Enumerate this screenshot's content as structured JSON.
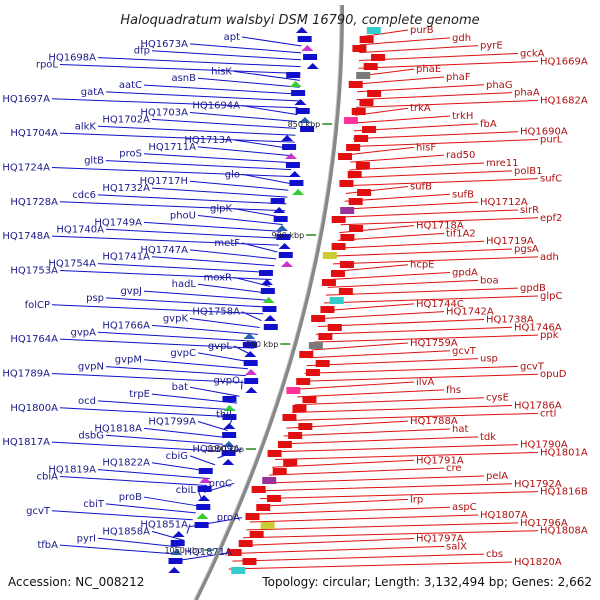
{
  "title": "Haloquadratum walsbyi DSM 16790, complete genome",
  "accession": "Accession: NC_008212",
  "topology": "Topology: circular; Length: 3,132,494 bp; Genes: 2,662",
  "colors": {
    "left_strand": "#1010cc",
    "right_strand": "#e01010",
    "backbone": "#888888",
    "tick": "#228822",
    "text": "#222222"
  },
  "kbp_ticks": [
    "850 kbp",
    "900 kbp",
    "950 kbp",
    "1000 kbp",
    "1050 kbp"
  ],
  "left_labels": [
    "apt",
    "HQ1673A",
    "dfp",
    "HQ1698A",
    "rpoL",
    "hisK",
    "asnB",
    "aatC",
    "gatA",
    "HQ1697A",
    "HQ1694A",
    "HQ1703A",
    "HQ1702A",
    "alkK",
    "HQ1704A",
    "HQ1713A",
    "HQ1711A",
    "proS",
    "gltB",
    "HQ1724A",
    "glo",
    "HQ1717H",
    "HQ1732A",
    "cdc6",
    "HQ1728A",
    "glpK",
    "phoU",
    "HQ1749A",
    "HQ1740A",
    "HQ1748A",
    "metF",
    "HQ1747A",
    "HQ1741A",
    "HQ1754A",
    "HQ1753A",
    "moxR",
    "hadL",
    "gvpJ",
    "psp",
    "folCP",
    "HQ1758A",
    "gvpK",
    "HQ1766A",
    "gvpA",
    "HQ1764A",
    "gvpL",
    "gvpC",
    "gvpM",
    "gvpN",
    "HQ1789A",
    "gvpO",
    "bat",
    "trpE",
    "ocd",
    "HQ1800A",
    "thiI",
    "HQ1799A",
    "HQ1818A",
    "dsbG",
    "HQ1817A",
    "HQ1809A",
    "cbiG",
    "HQ1822A",
    "HQ1819A",
    "cbiA",
    "proC",
    "cbiL",
    "proB",
    "cbiT",
    "gcvT",
    "proA",
    "HQ1851A",
    "HQ1858A",
    "pyrI",
    "tfbA",
    "HQ1871A"
  ],
  "right_labels": [
    "purB",
    "gdh",
    "pyrE",
    "gckA",
    "HQ1669A",
    "phaE",
    "phaF",
    "phaG",
    "phaA",
    "HQ1682A",
    "trkA",
    "trkH",
    "fbA",
    "HQ1690A",
    "purL",
    "hisF",
    "rad50",
    "mre11",
    "polB1",
    "sufC",
    "sufB",
    "sufB",
    "HQ1712A",
    "sirR",
    "epf2",
    "HQ1718A",
    "tif1A2",
    "HQ1719A",
    "pgsA",
    "adh",
    "hcpE",
    "gpdA",
    "boa",
    "gpdB",
    "glpC",
    "HQ1744C",
    "HQ1742A",
    "HQ1738A",
    "HQ1746A",
    "ppk",
    "HQ1759A",
    "gcvT",
    "usp",
    "gcvT",
    "opuD",
    "ilvA",
    "fhs",
    "cysE",
    "HQ1786A",
    "crtI",
    "HQ1788A",
    "hat",
    "tdk",
    "HQ1790A",
    "HQ1801A",
    "HQ1791A",
    "cre",
    "pelA",
    "HQ1792A",
    "HQ1816B",
    "lrp",
    "aspC",
    "HQ1807A",
    "HQ1796A",
    "HQ1808A",
    "HQ1797A",
    "salX",
    "cbs",
    "HQ1820A"
  ]
}
